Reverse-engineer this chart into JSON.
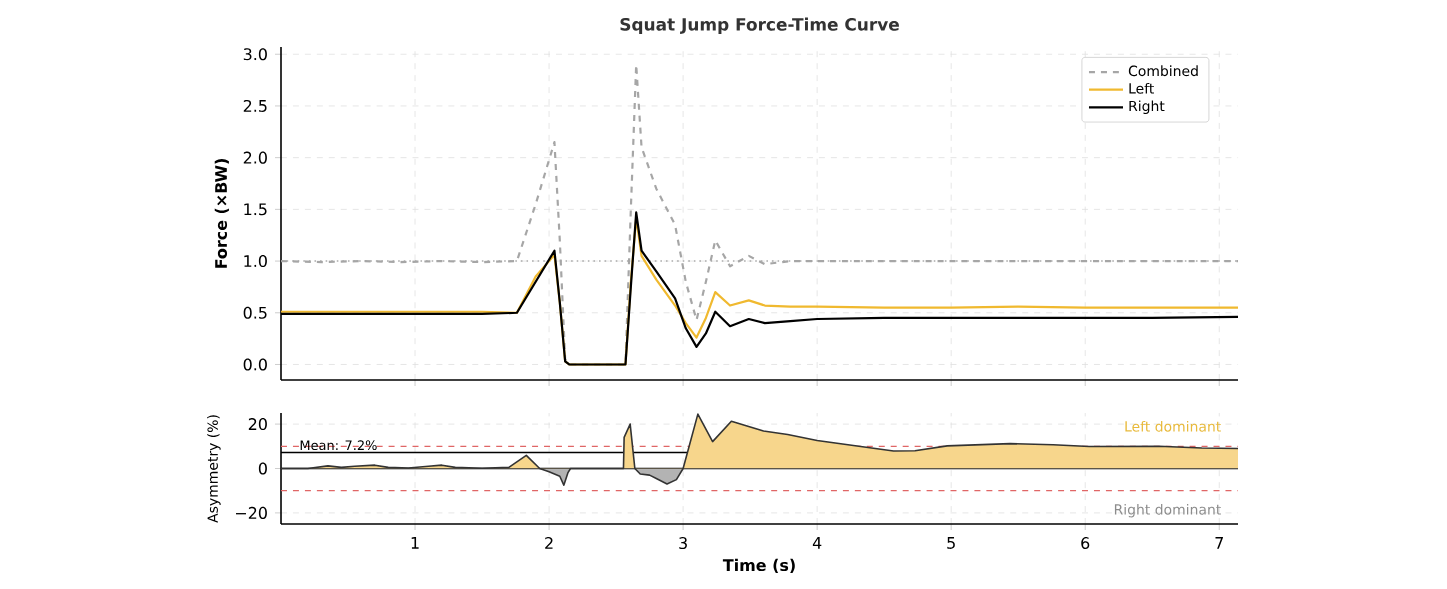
{
  "chart_data": [
    {
      "type": "line",
      "title": "Squat Jump Force-Time Curve",
      "ylabel": "Force (×BW)",
      "xlim": [
        0,
        7.14
      ],
      "ylim": [
        -0.15,
        3.07
      ],
      "xticks": [
        1,
        2,
        3,
        4,
        5,
        6,
        7
      ],
      "yticks": [
        {
          "value": 0,
          "label": "0.0"
        },
        {
          "value": 0.5,
          "label": "0.5"
        },
        {
          "value": 1,
          "label": "1.0"
        },
        {
          "value": 1.5,
          "label": "1.5"
        },
        {
          "value": 2,
          "label": "2.0"
        },
        {
          "value": 2.5,
          "label": "2.5"
        },
        {
          "value": 3,
          "label": "3.0"
        }
      ],
      "tick_labels": "y",
      "grid": true,
      "legend": "top right",
      "ref_lines": [
        {
          "axis": "y",
          "value": 1,
          "color": "#aaaaaa",
          "line_style": "dotted"
        }
      ],
      "x": [
        0,
        0.3,
        0.6,
        0.9,
        1.2,
        1.5,
        1.76,
        1.9,
        2.04,
        2.08,
        2.12,
        2.15,
        2.57,
        2.61,
        2.65,
        2.69,
        2.8,
        2.94,
        3.02,
        3.1,
        3.17,
        3.24,
        3.35,
        3.49,
        3.61,
        3.8,
        4.0,
        4.5,
        5.0,
        5.5,
        6.0,
        6.5,
        7.14
      ],
      "series": [
        {
          "name": "Combined",
          "color": "#a6a6a6",
          "line_style": "dashed",
          "values": [
            1.0,
            0.99,
            1.0,
            0.99,
            1.0,
            0.99,
            1.0,
            1.55,
            2.15,
            1.2,
            0.05,
            0,
            0,
            1.5,
            2.9,
            2.1,
            1.7,
            1.35,
            0.8,
            0.43,
            0.8,
            1.2,
            0.95,
            1.05,
            0.97,
            1.0,
            1.0,
            1.0,
            1.0,
            1.0,
            1.0,
            1.0,
            1.0
          ]
        },
        {
          "name": "Left",
          "color": "#f0b92f",
          "line_style": "solid",
          "values": [
            0.51,
            0.51,
            0.51,
            0.51,
            0.51,
            0.51,
            0.5,
            0.85,
            1.06,
            0.6,
            0.03,
            0,
            0,
            0.8,
            1.42,
            1.05,
            0.82,
            0.57,
            0.4,
            0.26,
            0.45,
            0.7,
            0.57,
            0.62,
            0.57,
            0.56,
            0.56,
            0.55,
            0.55,
            0.56,
            0.55,
            0.55,
            0.55
          ]
        },
        {
          "name": "Right",
          "color": "#000000",
          "line_style": "solid",
          "values": [
            0.49,
            0.49,
            0.49,
            0.49,
            0.49,
            0.49,
            0.5,
            0.8,
            1.1,
            0.6,
            0.03,
            0,
            0,
            0.75,
            1.47,
            1.1,
            0.9,
            0.64,
            0.35,
            0.17,
            0.3,
            0.51,
            0.37,
            0.44,
            0.4,
            0.42,
            0.44,
            0.45,
            0.45,
            0.45,
            0.45,
            0.45,
            0.46
          ]
        }
      ]
    },
    {
      "type": "area",
      "xlabel": "Time (s)",
      "ylabel": "Asymmetry (%)",
      "xlim": [
        0,
        7.14
      ],
      "ylim": [
        -25,
        25
      ],
      "xticks": [
        1,
        2,
        3,
        4,
        5,
        6,
        7
      ],
      "yticks": [
        {
          "value": -20,
          "label": "−20"
        },
        0,
        20
      ],
      "grid": true,
      "ref_lines": [
        {
          "axis": "y",
          "value": 10,
          "color": "#e06666",
          "line_style": "dashed"
        },
        {
          "axis": "y",
          "value": -10,
          "color": "#e06666",
          "line_style": "dashed"
        },
        {
          "axis": "y",
          "value": 0,
          "color": "#000000",
          "line_style": "solid"
        },
        {
          "axis": "y",
          "value": 7.2,
          "color": "#000000",
          "line_style": "solid",
          "label": "Mean: 7.2%"
        }
      ],
      "annotations": [
        "Left dominant",
        "Right dominant"
      ],
      "series": [
        {
          "color": "#f7d68c",
          "x": [
            0,
            0.2,
            0.35,
            0.45,
            0.55,
            0.7,
            0.8,
            0.95,
            1.1,
            1.2,
            1.3,
            1.5,
            1.7,
            1.83,
            1.93,
            2.0,
            2.08,
            2.11,
            2.14,
            2.16,
            2.555,
            2.56,
            2.605,
            2.64,
            2.68,
            2.75,
            2.8,
            2.88,
            2.95,
            3.0,
            3.11,
            3.22,
            3.36,
            3.6,
            3.78,
            4.0,
            4.23,
            4.57,
            4.73,
            4.97,
            5.44,
            5.76,
            6.03,
            6.55,
            6.87,
            7.14
          ],
          "values": [
            0,
            0,
            1.2,
            0.5,
            1.0,
            1.5,
            0.5,
            0.2,
            1.0,
            1.5,
            0.5,
            0.1,
            0.5,
            5.9,
            0,
            -1.5,
            -3.5,
            -7.5,
            -2,
            0,
            0,
            14,
            20,
            0,
            -2.5,
            -3,
            -4.5,
            -7,
            -5,
            0,
            24.5,
            12.1,
            21.3,
            16.9,
            15.3,
            12.6,
            10.7,
            7.9,
            8.0,
            10.2,
            11.2,
            10.7,
            9.9,
            10,
            9.2,
            9.0
          ]
        }
      ]
    }
  ]
}
